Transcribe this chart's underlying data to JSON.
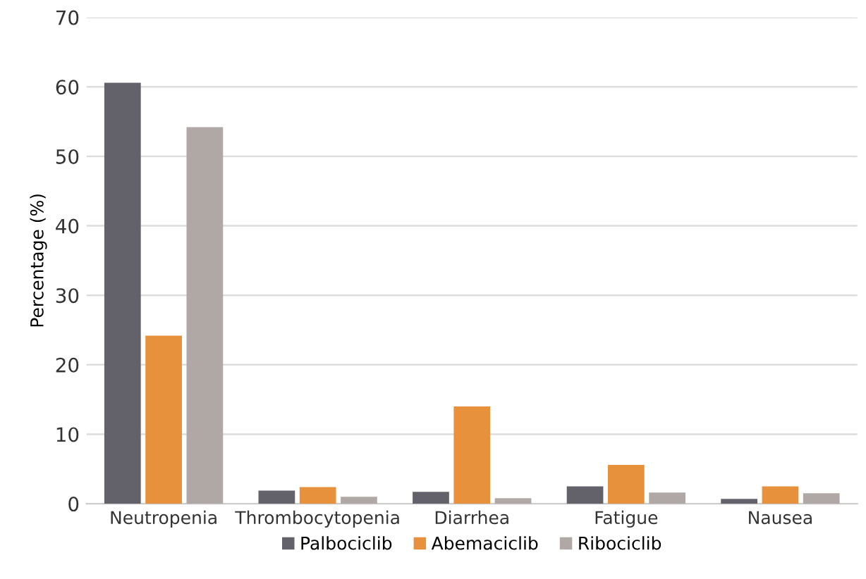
{
  "chart_data": {
    "type": "bar",
    "ylabel": "Percentage (%)",
    "categories": [
      "Neutropenia",
      "Thrombocytopenia",
      "Diarrhea",
      "Fatigue",
      "Nausea"
    ],
    "series": [
      {
        "name": "Palbociclib",
        "color": "#63626a",
        "values": [
          60.6,
          1.9,
          1.7,
          2.5,
          0.7
        ]
      },
      {
        "name": "Abemaciclib",
        "color": "#e8913d",
        "values": [
          24.2,
          2.4,
          14.0,
          5.6,
          2.5
        ]
      },
      {
        "name": "Ribociclib",
        "color": "#b0a8a5",
        "values": [
          54.2,
          1.0,
          0.8,
          1.6,
          1.5
        ]
      }
    ],
    "ylim": [
      0,
      70
    ],
    "yticks": [
      0,
      10,
      20,
      30,
      40,
      50,
      60,
      70
    ],
    "grid": "y",
    "legend": "bottom"
  }
}
